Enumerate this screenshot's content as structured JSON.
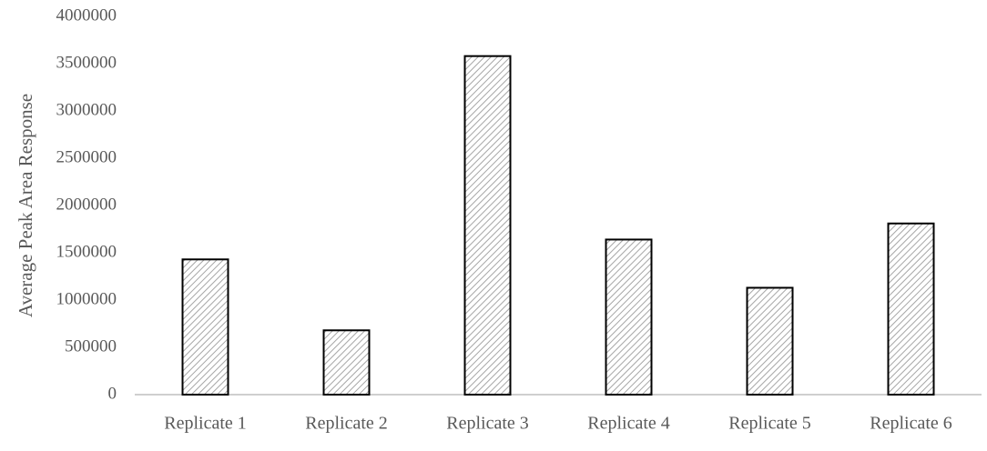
{
  "chart_data": {
    "type": "bar",
    "y_label": "Average Peak Area Response",
    "categories": [
      "Replicate 1",
      "Replicate 2",
      "Replicate 3",
      "Replicate 4",
      "Replicate 5",
      "Replicate 6"
    ],
    "values": [
      1430000,
      680000,
      3580000,
      1640000,
      1130000,
      1810000
    ],
    "color": "#bfbfbf",
    "ylim": [
      0,
      4000000
    ],
    "yticks": [
      0,
      500000,
      1000000,
      1500000,
      2000000,
      2500000,
      3000000,
      3500000,
      4000000
    ],
    "grid": false
  }
}
